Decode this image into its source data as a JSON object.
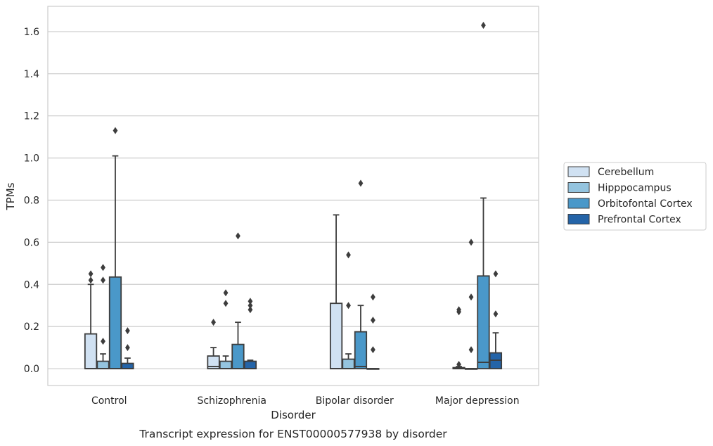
{
  "chart_data": {
    "type": "boxplot",
    "title": "",
    "caption": "Transcript expression for ENST00000577938 by disorder",
    "xlabel": "Disorder",
    "ylabel": "TPMs",
    "ylim": [
      -0.08,
      1.72
    ],
    "yticks": [
      0.0,
      0.2,
      0.4,
      0.6,
      0.8,
      1.0,
      1.2,
      1.4,
      1.6
    ],
    "ytick_labels": [
      "0.0",
      "0.2",
      "0.4",
      "0.6",
      "0.8",
      "1.0",
      "1.2",
      "1.4",
      "1.6"
    ],
    "grid": "horizontal",
    "legend_position": "right",
    "categories": [
      "Control",
      "Schizophrenia",
      "Bipolar disorder",
      "Major depression"
    ],
    "series": [
      {
        "name": "Cerebellum",
        "color": "#d0e1f2",
        "boxes": [
          {
            "q1": 0.0,
            "median": 0.0,
            "q3": 0.165,
            "whisker_low": 0.0,
            "whisker_high": 0.4,
            "outliers": [
              0.42,
              0.45
            ]
          },
          {
            "q1": 0.0,
            "median": 0.01,
            "q3": 0.06,
            "whisker_low": 0.0,
            "whisker_high": 0.1,
            "outliers": [
              0.22
            ]
          },
          {
            "q1": 0.0,
            "median": 0.0,
            "q3": 0.31,
            "whisker_low": 0.0,
            "whisker_high": 0.73,
            "outliers": []
          },
          {
            "q1": 0.0,
            "median": 0.0,
            "q3": 0.005,
            "whisker_low": 0.0,
            "whisker_high": 0.01,
            "outliers": [
              0.02,
              0.27,
              0.28
            ]
          }
        ]
      },
      {
        "name": "Hipppocampus",
        "color": "#94c4df",
        "boxes": [
          {
            "q1": 0.0,
            "median": 0.0,
            "q3": 0.035,
            "whisker_low": 0.0,
            "whisker_high": 0.07,
            "outliers": [
              0.13,
              0.42,
              0.48
            ]
          },
          {
            "q1": 0.0,
            "median": 0.0,
            "q3": 0.035,
            "whisker_low": 0.0,
            "whisker_high": 0.06,
            "outliers": [
              0.31,
              0.36
            ]
          },
          {
            "q1": 0.0,
            "median": 0.0,
            "q3": 0.045,
            "whisker_low": 0.0,
            "whisker_high": 0.07,
            "outliers": [
              0.3,
              0.54
            ]
          },
          {
            "q1": 0.0,
            "median": 0.0,
            "q3": 0.0,
            "whisker_low": 0.0,
            "whisker_high": 0.0,
            "outliers": [
              0.09,
              0.34,
              0.6
            ]
          }
        ]
      },
      {
        "name": "Orbitofontal Cortex",
        "color": "#4a98c9",
        "boxes": [
          {
            "q1": 0.0,
            "median": 0.0,
            "q3": 0.435,
            "whisker_low": 0.0,
            "whisker_high": 1.01,
            "outliers": [
              1.13
            ]
          },
          {
            "q1": 0.0,
            "median": 0.0,
            "q3": 0.115,
            "whisker_low": 0.0,
            "whisker_high": 0.22,
            "outliers": [
              0.63
            ]
          },
          {
            "q1": 0.0,
            "median": 0.01,
            "q3": 0.175,
            "whisker_low": 0.0,
            "whisker_high": 0.3,
            "outliers": [
              0.88
            ]
          },
          {
            "q1": 0.0,
            "median": 0.03,
            "q3": 0.44,
            "whisker_low": 0.0,
            "whisker_high": 0.81,
            "outliers": [
              1.63
            ]
          }
        ]
      },
      {
        "name": "Prefrontal Cortex",
        "color": "#2464a8",
        "boxes": [
          {
            "q1": 0.0,
            "median": 0.0,
            "q3": 0.025,
            "whisker_low": 0.0,
            "whisker_high": 0.05,
            "outliers": [
              0.1,
              0.18
            ]
          },
          {
            "q1": 0.0,
            "median": 0.0,
            "q3": 0.035,
            "whisker_low": 0.0,
            "whisker_high": 0.04,
            "outliers": [
              0.28,
              0.3,
              0.32
            ]
          },
          {
            "q1": 0.0,
            "median": 0.0,
            "q3": 0.0,
            "whisker_low": 0.0,
            "whisker_high": 0.0,
            "outliers": [
              0.09,
              0.23,
              0.34
            ]
          },
          {
            "q1": 0.0,
            "median": 0.04,
            "q3": 0.075,
            "whisker_low": 0.0,
            "whisker_high": 0.17,
            "outliers": [
              0.26,
              0.45
            ]
          }
        ]
      }
    ]
  }
}
